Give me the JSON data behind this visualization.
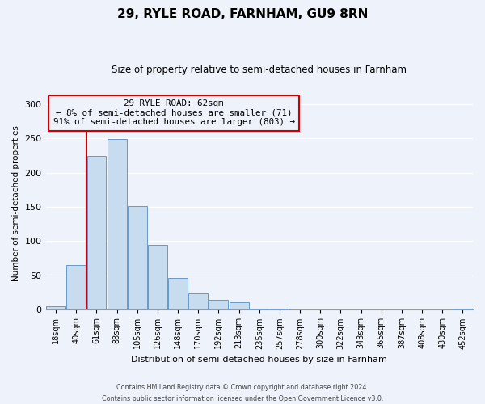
{
  "title": "29, RYLE ROAD, FARNHAM, GU9 8RN",
  "subtitle": "Size of property relative to semi-detached houses in Farnham",
  "xlabel": "Distribution of semi-detached houses by size in Farnham",
  "ylabel": "Number of semi-detached properties",
  "bar_labels": [
    "18sqm",
    "40sqm",
    "61sqm",
    "83sqm",
    "105sqm",
    "126sqm",
    "148sqm",
    "170sqm",
    "192sqm",
    "213sqm",
    "235sqm",
    "257sqm",
    "278sqm",
    "300sqm",
    "322sqm",
    "343sqm",
    "365sqm",
    "387sqm",
    "408sqm",
    "430sqm",
    "452sqm"
  ],
  "bar_values": [
    5,
    65,
    224,
    249,
    151,
    95,
    46,
    24,
    14,
    11,
    1,
    1,
    0,
    0,
    0,
    0,
    0,
    0,
    0,
    0,
    1
  ],
  "bar_color": "#c8dcf0",
  "bar_edge_color": "#6699cc",
  "highlight_color": "#cc0000",
  "annotation_title": "29 RYLE ROAD: 62sqm",
  "annotation_line1": "← 8% of semi-detached houses are smaller (71)",
  "annotation_line2": "91% of semi-detached houses are larger (803) →",
  "annotation_box_color": "#cc0000",
  "ylim": [
    0,
    310
  ],
  "yticks": [
    0,
    50,
    100,
    150,
    200,
    250,
    300
  ],
  "footnote1": "Contains HM Land Registry data © Crown copyright and database right 2024.",
  "footnote2": "Contains public sector information licensed under the Open Government Licence v3.0.",
  "bg_color": "#eef2fa"
}
